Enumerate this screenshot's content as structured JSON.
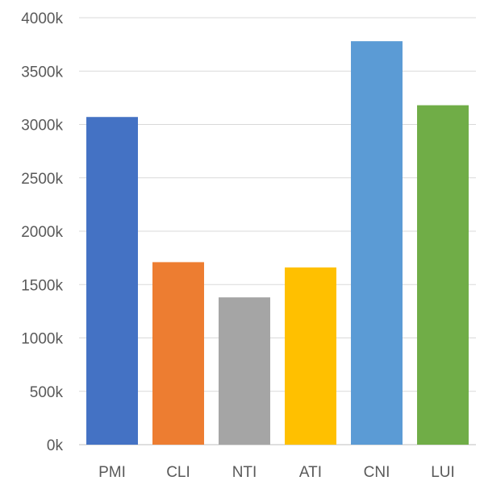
{
  "chart_data": {
    "type": "bar",
    "title": "",
    "xlabel": "",
    "ylabel": "",
    "categories": [
      "PMI",
      "CLI",
      "NTI",
      "ATI",
      "CNI",
      "LUI"
    ],
    "values": [
      3070,
      1710,
      1380,
      1660,
      3780,
      3180
    ],
    "ylim": [
      0,
      4000
    ],
    "yticks": [
      {
        "value": 0,
        "label": "0k"
      },
      {
        "value": 500,
        "label": "500k"
      },
      {
        "value": 1000,
        "label": "1000k"
      },
      {
        "value": 1500,
        "label": "1500k"
      },
      {
        "value": 2000,
        "label": "2000k"
      },
      {
        "value": 2500,
        "label": "2500k"
      },
      {
        "value": 3000,
        "label": "3000k"
      },
      {
        "value": 3500,
        "label": "3500k"
      },
      {
        "value": 4000,
        "label": "4000k"
      }
    ],
    "grid": true,
    "legend": "none",
    "bar_colors": [
      "#4472C4",
      "#ED7D31",
      "#A5A5A5",
      "#FFC000",
      "#5B9BD5",
      "#70AD47"
    ]
  }
}
